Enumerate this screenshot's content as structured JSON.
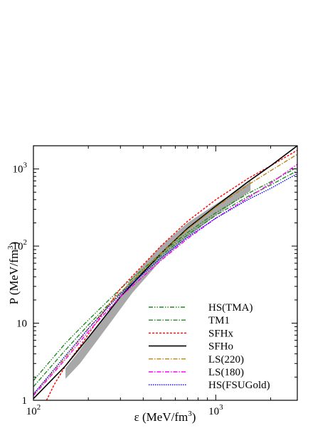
{
  "chart_data": {
    "type": "line",
    "title": "",
    "xlabel": "ε (MeV/fm",
    "ylabel": "P (MeV/fm",
    "label_unit_exponent": "3",
    "xlabel_close": ")",
    "ylabel_close": ")",
    "x_scale": "log",
    "y_scale": "log",
    "xlim": [
      100,
      2800
    ],
    "ylim": [
      1,
      2000
    ],
    "x_tick_labels": [
      {
        "value": 100,
        "base": "10",
        "exp": "2"
      },
      {
        "value": 1000,
        "base": "10",
        "exp": "3"
      }
    ],
    "y_tick_labels": [
      {
        "value": 1,
        "base": "1",
        "exp": ""
      },
      {
        "value": 10,
        "base": "10",
        "exp": ""
      },
      {
        "value": 100,
        "base": "10",
        "exp": "2"
      },
      {
        "value": 1000,
        "base": "10",
        "exp": "3"
      }
    ],
    "grid": false,
    "legend_position": "bottom-right",
    "band": {
      "color": "#999999",
      "upper": [
        [
          150,
          2.6
        ],
        [
          180,
          4.5
        ],
        [
          250,
          13
        ],
        [
          350,
          40
        ],
        [
          500,
          100
        ],
        [
          700,
          200
        ],
        [
          1000,
          350
        ],
        [
          1500,
          650
        ],
        [
          1550,
          720
        ]
      ],
      "lower": [
        [
          1550,
          520
        ],
        [
          1000,
          250
        ],
        [
          700,
          130
        ],
        [
          500,
          65
        ],
        [
          350,
          25
        ],
        [
          250,
          8.5
        ],
        [
          180,
          3.0
        ],
        [
          150,
          1.9
        ]
      ]
    },
    "series": [
      {
        "name": "HS(TMA)",
        "color": "#228b22",
        "dash": "6,2,1.5,2,1.5,2",
        "x": [
          100,
          150,
          200,
          300,
          500,
          700,
          1000,
          1500,
          2000,
          2800
        ],
        "y": [
          1.8,
          5.5,
          11,
          28,
          80,
          150,
          270,
          480,
          680,
          1050
        ]
      },
      {
        "name": "TM1",
        "color": "#228b22",
        "dash": "6,2,1.5,2",
        "x": [
          100,
          150,
          200,
          300,
          500,
          700,
          1000,
          1500,
          2000,
          2800
        ],
        "y": [
          1.5,
          4.5,
          9.5,
          25,
          75,
          140,
          250,
          440,
          620,
          950
        ]
      },
      {
        "name": "SFHx",
        "color": "#ff0000",
        "dash": "3,2",
        "x": [
          118,
          130,
          150,
          180,
          220,
          300,
          500,
          700,
          1000,
          1500,
          2000,
          2800
        ],
        "y": [
          1,
          1.6,
          2.8,
          5,
          10,
          28,
          100,
          210,
          400,
          750,
          1100,
          1750
        ]
      },
      {
        "name": "SFHo",
        "color": "#000000",
        "dash": "",
        "x": [
          100,
          150,
          200,
          300,
          500,
          700,
          1000,
          1500,
          2000,
          2800
        ],
        "y": [
          1.05,
          2.8,
          6.5,
          22,
          80,
          170,
          330,
          680,
          1100,
          2000
        ]
      },
      {
        "name": "LS(220)",
        "color": "#b8860b",
        "dash": "6,2,1.5,2",
        "x": [
          100,
          150,
          200,
          300,
          500,
          700,
          1000,
          1500,
          2000,
          2800
        ],
        "y": [
          1.2,
          3.6,
          8.5,
          25,
          80,
          165,
          320,
          620,
          950,
          1550
        ]
      },
      {
        "name": "LS(180)",
        "color": "#ff00ff",
        "dash": "6,2,1.5,2",
        "x": [
          100,
          150,
          200,
          300,
          500,
          700,
          1000,
          1500,
          2000,
          2800
        ],
        "y": [
          1.15,
          3.4,
          7.8,
          22,
          65,
          125,
          230,
          420,
          650,
          1150
        ]
      },
      {
        "name": "HS(FSUGold)",
        "color": "#0000ff",
        "dash": "1.5,1.5",
        "x": [
          100,
          150,
          200,
          300,
          500,
          700,
          1000,
          1500,
          2000,
          2800
        ],
        "y": [
          1.2,
          3.8,
          8.5,
          24,
          70,
          130,
          230,
          400,
          560,
          870
        ]
      }
    ]
  }
}
